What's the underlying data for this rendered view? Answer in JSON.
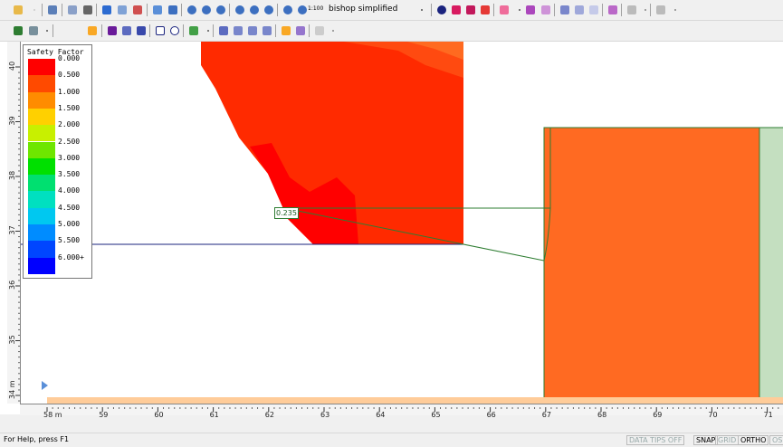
{
  "toolbar1": {
    "method_combo": "bishop simplified",
    "zoom_label": "1:100"
  },
  "legend": {
    "title": "Safety Factor",
    "entries": [
      {
        "label": "0.000",
        "color": "#ff0000"
      },
      {
        "label": "0.500",
        "color": "#ff4a00"
      },
      {
        "label": "1.000",
        "color": "#ff8c00"
      },
      {
        "label": "1.500",
        "color": "#ffd000"
      },
      {
        "label": "2.000",
        "color": "#c8f000"
      },
      {
        "label": "2.500",
        "color": "#6ee600"
      },
      {
        "label": "3.000",
        "color": "#00e000"
      },
      {
        "label": "3.500",
        "color": "#00e070"
      },
      {
        "label": "4.000",
        "color": "#00e0c0"
      },
      {
        "label": "4.500",
        "color": "#00c8f0"
      },
      {
        "label": "5.000",
        "color": "#008cff"
      },
      {
        "label": "5.500",
        "color": "#0046ff"
      },
      {
        "label": "6.000+",
        "color": "#0000ff"
      }
    ]
  },
  "slip": {
    "min_fs": "0.235"
  },
  "hruler": {
    "labels": [
      "58 m",
      "59",
      "60",
      "61",
      "62",
      "63",
      "64",
      "65",
      "66",
      "67",
      "68",
      "69",
      "70",
      "71"
    ]
  },
  "vruler": {
    "labels": [
      "40",
      "39",
      "38",
      "37",
      "36",
      "35",
      "34 m"
    ]
  },
  "status": {
    "help": "For Help, press F1",
    "data_tips": "DATA TIPS OFF",
    "snap": "SNAP",
    "grid": "GRID",
    "ortho": "ORTHO",
    "osnap": "OS"
  },
  "colors": {
    "material_orange": "#ff6a22",
    "material_green": "#c4dfc0",
    "base_strip": "#ffcc99",
    "slip_line": "#2e7d32",
    "water_line": "#1a237e"
  }
}
